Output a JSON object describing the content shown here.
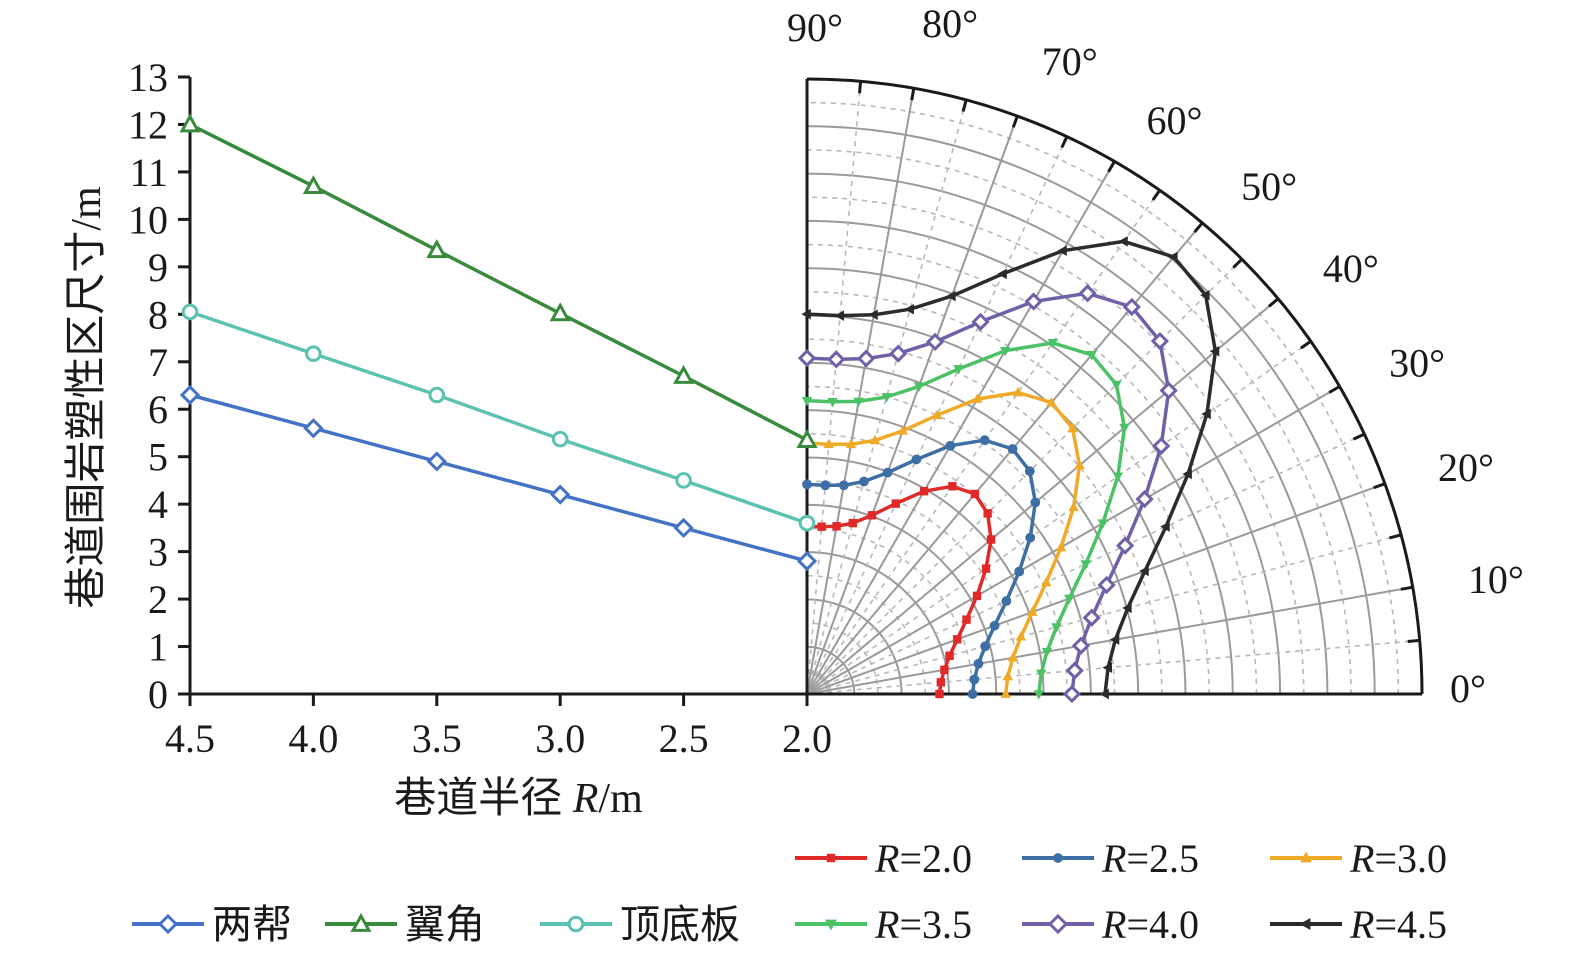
{
  "chart_data": [
    {
      "type": "line",
      "xlabel": "巷道半径 R/m",
      "xlabel_parts": [
        "巷道半径 ",
        "R",
        "/m"
      ],
      "ylabel": "巷道围岩塑性区尺寸/m",
      "x": [
        4.5,
        4.0,
        3.5,
        3.0,
        2.5,
        2.0
      ],
      "xlim": [
        4.5,
        2.0
      ],
      "ylim": [
        0,
        13
      ],
      "x_ticks": [
        "4.5",
        "4.0",
        "3.5",
        "3.0",
        "2.5",
        "2.0"
      ],
      "y_ticks": [
        "0",
        "1",
        "2",
        "3",
        "4",
        "5",
        "6",
        "7",
        "8",
        "9",
        "10",
        "11",
        "12",
        "13"
      ],
      "series": [
        {
          "name": "两帮",
          "color": "#4472c4",
          "marker": "diamond",
          "values": [
            6.3,
            5.6,
            4.9,
            4.2,
            3.5,
            2.8
          ]
        },
        {
          "name": "翼角",
          "color": "#3a8a3e",
          "marker": "triangle",
          "values": [
            12.0,
            10.7,
            9.35,
            8.02,
            6.7,
            5.35
          ]
        },
        {
          "name": "顶底板",
          "color": "#5cc2b0",
          "marker": "circle",
          "values": [
            8.05,
            7.17,
            6.3,
            5.37,
            4.5,
            3.6
          ]
        }
      ]
    },
    {
      "type": "polar",
      "theta_range_deg": [
        0,
        90
      ],
      "r_max": 13,
      "angle_ticks": [
        "0°",
        "10°",
        "20°",
        "30°",
        "40°",
        "50°",
        "60°",
        "70°",
        "80°",
        "90°"
      ],
      "series": [
        {
          "name": "R=2.0",
          "label_var": "R",
          "label_value": "=2.0",
          "color": "#e02a2a",
          "marker": "square",
          "theta": [
            0,
            5,
            10,
            15,
            20,
            25,
            30,
            35,
            40,
            45,
            50,
            55,
            60,
            65,
            70,
            75,
            80,
            85,
            90
          ],
          "r": [
            2.8,
            2.84,
            2.95,
            3.12,
            3.38,
            3.72,
            4.15,
            4.62,
            5.08,
            5.4,
            5.52,
            5.36,
            4.95,
            4.44,
            4.02,
            3.74,
            3.6,
            3.55,
            3.55
          ]
        },
        {
          "name": "R=2.5",
          "label_var": "R",
          "label_value": "=2.5",
          "color": "#3d6ea5",
          "marker": "circle",
          "theta": [
            0,
            5,
            10,
            15,
            20,
            25,
            30,
            35,
            40,
            45,
            50,
            55,
            60,
            65,
            70,
            75,
            80,
            85,
            90
          ],
          "r": [
            3.5,
            3.55,
            3.68,
            3.9,
            4.22,
            4.65,
            5.18,
            5.76,
            6.3,
            6.66,
            6.76,
            6.55,
            6.06,
            5.47,
            4.98,
            4.65,
            4.48,
            4.43,
            4.43
          ]
        },
        {
          "name": "R=3.0",
          "label_var": "R",
          "label_value": "=3.0",
          "color": "#f0aa28",
          "marker": "triangle-up",
          "theta": [
            0,
            5,
            10,
            15,
            20,
            25,
            30,
            35,
            40,
            45,
            50,
            55,
            60,
            65,
            70,
            75,
            80,
            85,
            90
          ],
          "r": [
            4.2,
            4.26,
            4.42,
            4.68,
            5.07,
            5.58,
            6.2,
            6.88,
            7.52,
            7.94,
            8.04,
            7.78,
            7.2,
            6.5,
            5.92,
            5.55,
            5.36,
            5.3,
            5.3
          ]
        },
        {
          "name": "R=3.5",
          "label_var": "R",
          "label_value": "=3.5",
          "color": "#4cc266",
          "marker": "triangle-down",
          "theta": [
            0,
            5,
            10,
            15,
            20,
            25,
            30,
            35,
            40,
            45,
            50,
            55,
            60,
            65,
            70,
            75,
            80,
            85,
            90
          ],
          "r": [
            4.9,
            4.97,
            5.15,
            5.46,
            5.9,
            6.5,
            7.22,
            8.02,
            8.76,
            9.25,
            9.36,
            9.06,
            8.38,
            7.58,
            6.92,
            6.5,
            6.28,
            6.2,
            6.2
          ]
        },
        {
          "name": "R=4.0",
          "label_var": "R",
          "label_value": "=4.0",
          "color": "#6a63a8",
          "marker": "diamond",
          "theta": [
            0,
            5,
            10,
            15,
            20,
            25,
            30,
            35,
            40,
            45,
            50,
            55,
            60,
            65,
            70,
            75,
            80,
            85,
            90
          ],
          "r": [
            5.6,
            5.68,
            5.88,
            6.23,
            6.74,
            7.42,
            8.24,
            9.14,
            9.98,
            10.55,
            10.68,
            10.34,
            9.58,
            8.68,
            7.92,
            7.45,
            7.2,
            7.1,
            7.1
          ]
        },
        {
          "name": "R=4.5",
          "label_var": "R",
          "label_value": "=4.5",
          "color": "#2b2b2b",
          "marker": "triangle-left",
          "theta": [
            0,
            5,
            10,
            15,
            20,
            25,
            30,
            35,
            40,
            45,
            50,
            55,
            60,
            65,
            70,
            75,
            80,
            85,
            90
          ],
          "r": [
            6.3,
            6.39,
            6.62,
            7.02,
            7.6,
            8.37,
            9.3,
            10.32,
            11.27,
            11.92,
            12.06,
            11.68,
            10.82,
            9.8,
            8.95,
            8.42,
            8.14,
            8.03,
            8.03
          ]
        }
      ]
    }
  ]
}
